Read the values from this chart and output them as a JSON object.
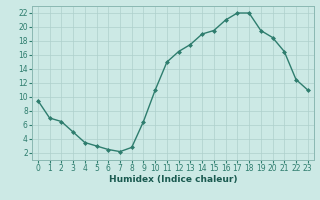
{
  "x": [
    0,
    1,
    2,
    3,
    4,
    5,
    6,
    7,
    8,
    9,
    10,
    11,
    12,
    13,
    14,
    15,
    16,
    17,
    18,
    19,
    20,
    21,
    22,
    23
  ],
  "y": [
    9.5,
    7.0,
    6.5,
    5.0,
    3.5,
    3.0,
    2.5,
    2.2,
    2.8,
    6.5,
    11.0,
    15.0,
    16.5,
    17.5,
    19.0,
    19.5,
    21.0,
    22.0,
    22.0,
    19.5,
    18.5,
    16.5,
    12.5,
    11.0
  ],
  "line_color": "#2e7d6e",
  "marker": "D",
  "marker_size": 2.0,
  "line_width": 1.0,
  "bg_color": "#cce9e5",
  "grid_color": "#aed0cc",
  "xlabel": "Humidex (Indice chaleur)",
  "xlim": [
    -0.5,
    23.5
  ],
  "ylim": [
    1,
    23
  ],
  "yticks": [
    2,
    4,
    6,
    8,
    10,
    12,
    14,
    16,
    18,
    20,
    22
  ],
  "xticks": [
    0,
    1,
    2,
    3,
    4,
    5,
    6,
    7,
    8,
    9,
    10,
    11,
    12,
    13,
    14,
    15,
    16,
    17,
    18,
    19,
    20,
    21,
    22,
    23
  ],
  "xlabel_fontsize": 6.5,
  "tick_fontsize": 5.5,
  "tick_color": "#2e7d6e",
  "spine_color": "#8ab8b2"
}
